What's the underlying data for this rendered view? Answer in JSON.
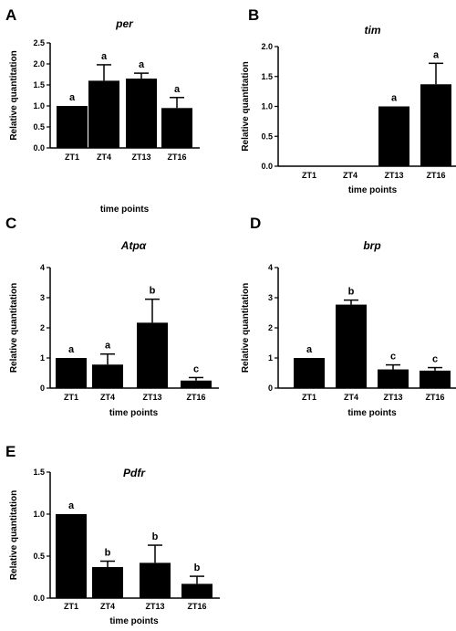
{
  "chart_data": [
    {
      "panel": "A",
      "type": "bar",
      "title": "per",
      "xlabel": "time points",
      "ylabel": "Relative quantitation",
      "categories": [
        "ZT1",
        "ZT4",
        "ZT13",
        "ZT16"
      ],
      "values": [
        1.0,
        1.6,
        1.65,
        0.95
      ],
      "errors": [
        0,
        0.38,
        0.13,
        0.25
      ],
      "significance": [
        "a",
        "a",
        "a",
        "a"
      ],
      "ylim": [
        0,
        2.5
      ],
      "yticks": [
        "0.0",
        "0.5",
        "1.0",
        "1.5",
        "2.0",
        "2.5"
      ],
      "grid": false
    },
    {
      "panel": "B",
      "type": "bar",
      "title": "tim",
      "xlabel": "time points",
      "ylabel": "Relative quantitation",
      "categories": [
        "ZT1",
        "ZT4",
        "ZT13",
        "ZT16"
      ],
      "values": [
        0,
        0,
        1.0,
        1.37
      ],
      "errors": [
        0,
        0,
        0,
        0.35
      ],
      "significance": [
        "",
        "",
        "a",
        "a"
      ],
      "ylim": [
        0,
        2.0
      ],
      "yticks": [
        "0.0",
        "0.5",
        "1.0",
        "1.5",
        "2.0"
      ],
      "grid": false
    },
    {
      "panel": "C",
      "type": "bar",
      "title": "Atpα",
      "xlabel": "time points",
      "ylabel": "Relative quantitation",
      "categories": [
        "ZT1",
        "ZT4",
        "ZT13",
        "ZT16"
      ],
      "values": [
        1.0,
        0.78,
        2.17,
        0.25
      ],
      "errors": [
        0,
        0.35,
        0.78,
        0.1
      ],
      "significance": [
        "a",
        "a",
        "b",
        "c"
      ],
      "ylim": [
        0,
        4
      ],
      "yticks": [
        "0",
        "1",
        "2",
        "3",
        "4"
      ],
      "grid": false
    },
    {
      "panel": "D",
      "type": "bar",
      "title": "brp",
      "xlabel": "time points",
      "ylabel": "Relative quantitation",
      "categories": [
        "ZT1",
        "ZT4",
        "ZT13",
        "ZT16"
      ],
      "values": [
        1.0,
        2.77,
        0.62,
        0.58
      ],
      "errors": [
        0,
        0.15,
        0.15,
        0.1
      ],
      "significance": [
        "a",
        "b",
        "c",
        "c"
      ],
      "ylim": [
        0,
        4
      ],
      "yticks": [
        "0",
        "1",
        "2",
        "3",
        "4"
      ],
      "grid": false
    },
    {
      "panel": "E",
      "type": "bar",
      "title": "Pdfr",
      "xlabel": "time points",
      "ylabel": "Relative quantitation",
      "categories": [
        "ZT1",
        "ZT4",
        "ZT13",
        "ZT16"
      ],
      "values": [
        1.0,
        0.37,
        0.42,
        0.17
      ],
      "errors": [
        0,
        0.07,
        0.21,
        0.09
      ],
      "significance": [
        "a",
        "b",
        "b",
        "b"
      ],
      "ylim": [
        0,
        1.5
      ],
      "yticks": [
        "0.0",
        "0.5",
        "1.0",
        "1.5"
      ],
      "grid": false
    }
  ]
}
